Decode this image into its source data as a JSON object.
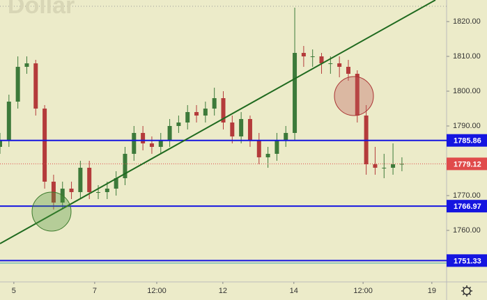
{
  "chart_data": {
    "type": "candlestick",
    "title": ". Dollar",
    "up_color": "#3d7a3a",
    "down_color": "#b43b3b",
    "x": [
      0,
      2,
      4,
      6,
      8,
      10,
      12,
      14,
      16,
      18,
      20,
      22,
      24,
      26,
      28,
      30,
      32,
      34,
      36,
      38,
      40,
      42,
      44,
      46,
      48,
      50,
      52,
      54,
      56,
      58,
      60,
      62,
      64,
      66,
      68,
      70,
      72,
      74,
      76,
      78,
      80,
      82,
      84,
      86,
      88,
      90
    ],
    "open": [
      1784,
      1786,
      1797,
      1807,
      1808,
      1795,
      1774,
      1768,
      1772,
      1771,
      1778,
      1771,
      1771,
      1772,
      1775,
      1782,
      1788,
      1785,
      1784,
      1786,
      1790,
      1791,
      1794,
      1793,
      1795,
      1798,
      1791,
      1787,
      1792,
      1786,
      1781,
      1782,
      1786,
      1788,
      1811,
      1810,
      1810,
      1808,
      1808,
      1807,
      1805,
      1793,
      1779,
      1778,
      1778,
      1779
    ],
    "high": [
      1788,
      1799,
      1810,
      1810,
      1809,
      1796,
      1776,
      1774,
      1774,
      1780,
      1780,
      1773,
      1774,
      1777,
      1784,
      1790,
      1790,
      1787,
      1788,
      1792,
      1793,
      1796,
      1796,
      1797,
      1801,
      1800,
      1793,
      1794,
      1793,
      1788,
      1784,
      1788,
      1790,
      1824,
      1813,
      1812,
      1811,
      1810,
      1810,
      1809,
      1806,
      1796,
      1784,
      1782,
      1785,
      1781
    ],
    "low": [
      1782,
      1784,
      1795,
      1805,
      1793,
      1772,
      1766,
      1766,
      1769,
      1769,
      1769,
      1769,
      1769,
      1770,
      1773,
      1780,
      1783,
      1782,
      1782,
      1784,
      1788,
      1789,
      1791,
      1791,
      1793,
      1789,
      1785,
      1785,
      1784,
      1779,
      1778,
      1780,
      1784,
      1786,
      1807,
      1807,
      1805,
      1805,
      1804,
      1803,
      1791,
      1776,
      1776,
      1775,
      1776,
      1777
    ],
    "close": [
      1786,
      1797,
      1807,
      1808,
      1795,
      1774,
      1768,
      1772,
      1771,
      1778,
      1771,
      1771,
      1772,
      1775,
      1782,
      1788,
      1785,
      1784,
      1786,
      1790,
      1791,
      1794,
      1793,
      1795,
      1798,
      1791,
      1787,
      1792,
      1786,
      1781,
      1782,
      1786,
      1788,
      1811,
      1810,
      1810,
      1808,
      1808,
      1807,
      1805,
      1793,
      1779,
      1778,
      1778,
      1779,
      1779.12
    ],
    "xlim": [
      0,
      100
    ],
    "xticks": [
      {
        "value": 3.1,
        "label": "5"
      },
      {
        "value": 21.2,
        "label": "7"
      },
      {
        "value": 35.1,
        "label": "12:00"
      },
      {
        "value": 49.9,
        "label": "12"
      },
      {
        "value": 65.8,
        "label": "14"
      },
      {
        "value": 81.3,
        "label": "12:00"
      },
      {
        "value": 96.7,
        "label": "19"
      }
    ],
    "ylim": [
      1745.2,
      1826.2
    ],
    "yticks": [
      {
        "value": 1760,
        "label": "1760.00"
      },
      {
        "value": 1770,
        "label": "1770.00"
      },
      {
        "value": 1780,
        "label": "1780.00"
      },
      {
        "value": 1790,
        "label": "1790.00"
      },
      {
        "value": 1800,
        "label": "1800.00"
      },
      {
        "value": 1810,
        "label": "1810.00"
      },
      {
        "value": 1820,
        "label": "1820.00"
      }
    ],
    "levels": [
      {
        "value": 1785.86,
        "label": "1785.86",
        "color": "#1515e0",
        "style": "solid"
      },
      {
        "value": 1766.97,
        "label": "1766.97",
        "color": "#1515e0",
        "style": "solid"
      },
      {
        "value": 1751.33,
        "label": "1751.33",
        "color": "#1515e0",
        "style": "solid"
      },
      {
        "value": 1779.12,
        "label": "1779.12",
        "color": "#e04b4b",
        "style": "dotted"
      }
    ]
  }
}
